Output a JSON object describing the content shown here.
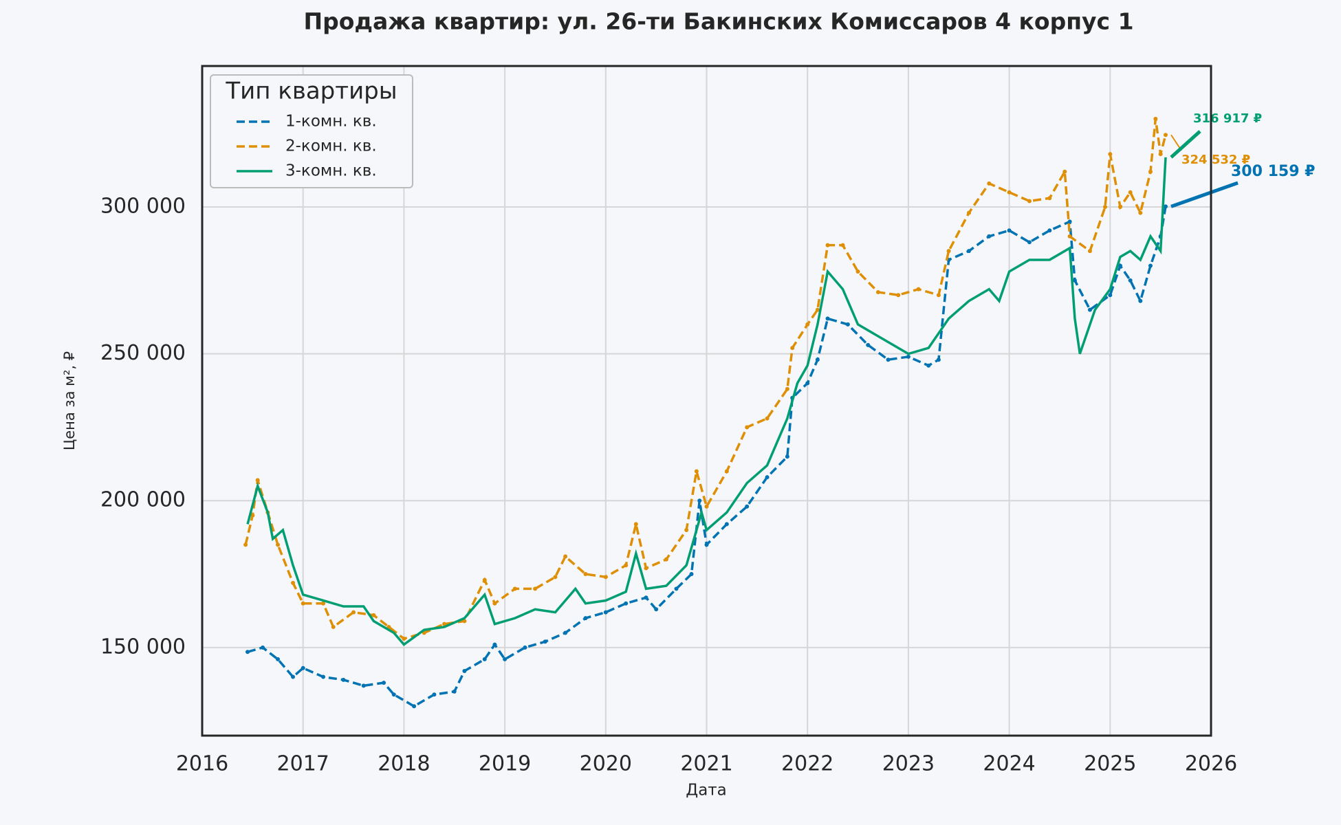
{
  "chart_data": {
    "type": "line",
    "title": "Продажа квартир: ул. 26-ти Бакинских Комиссаров 4 корпус 1",
    "x_label": "Дата",
    "y_label": "Цена за м², ₽",
    "legend_title": "Тип квартиры",
    "legend_position": "upper left",
    "grid": true,
    "xlim": [
      2016,
      2026
    ],
    "xticks": [
      2016,
      2017,
      2018,
      2019,
      2020,
      2021,
      2022,
      2023,
      2024,
      2025,
      2026
    ],
    "ylim": [
      120000,
      348000
    ],
    "yticks": [
      {
        "value": 150000,
        "label": "150 000"
      },
      {
        "value": 200000,
        "label": "200 000"
      },
      {
        "value": 250000,
        "label": "250 000"
      },
      {
        "value": 300000,
        "label": "300 000"
      }
    ],
    "series": [
      {
        "name": "1-комн. кв.",
        "color": "#0173b2",
        "dashed": true,
        "annotation": "300 159 ₽",
        "x": [
          2016.45,
          2016.6,
          2016.75,
          2016.9,
          2017.0,
          2017.2,
          2017.4,
          2017.6,
          2017.8,
          2017.9,
          2018.1,
          2018.3,
          2018.5,
          2018.6,
          2018.8,
          2018.9,
          2019.0,
          2019.2,
          2019.4,
          2019.6,
          2019.8,
          2020.0,
          2020.2,
          2020.4,
          2020.5,
          2020.7,
          2020.85,
          2020.93,
          2021.0,
          2021.2,
          2021.4,
          2021.6,
          2021.8,
          2021.85,
          2022.0,
          2022.1,
          2022.2,
          2022.4,
          2022.6,
          2022.8,
          2023.0,
          2023.2,
          2023.3,
          2023.4,
          2023.6,
          2023.8,
          2024.0,
          2024.2,
          2024.4,
          2024.6,
          2024.65,
          2024.8,
          2025.0,
          2025.1,
          2025.2,
          2025.3,
          2025.4,
          2025.5,
          2025.55
        ],
        "values": [
          148500,
          150000,
          146000,
          140000,
          143000,
          140000,
          139000,
          137000,
          138000,
          134000,
          130000,
          134000,
          135000,
          142000,
          146000,
          151000,
          146000,
          150000,
          152000,
          155000,
          160000,
          162000,
          165000,
          167000,
          163000,
          170000,
          175000,
          200000,
          185000,
          192000,
          198000,
          208000,
          215000,
          235000,
          240000,
          248000,
          262000,
          260000,
          253000,
          248000,
          249000,
          246000,
          248000,
          282000,
          285000,
          290000,
          292000,
          288000,
          292000,
          295000,
          275000,
          265000,
          270000,
          280000,
          275000,
          268000,
          280000,
          290000,
          300159
        ]
      },
      {
        "name": "2-комн. кв.",
        "color": "#de8f05",
        "dashed": true,
        "annotation": "324 532 ₽",
        "x": [
          2016.43,
          2016.5,
          2016.55,
          2016.65,
          2016.75,
          2016.9,
          2017.0,
          2017.2,
          2017.3,
          2017.5,
          2017.7,
          2017.85,
          2018.0,
          2018.2,
          2018.4,
          2018.6,
          2018.8,
          2018.9,
          2019.1,
          2019.3,
          2019.5,
          2019.6,
          2019.8,
          2020.0,
          2020.2,
          2020.3,
          2020.4,
          2020.6,
          2020.8,
          2020.9,
          2021.0,
          2021.2,
          2021.4,
          2021.6,
          2021.8,
          2021.85,
          2022.0,
          2022.1,
          2022.2,
          2022.35,
          2022.5,
          2022.7,
          2022.9,
          2023.1,
          2023.3,
          2023.4,
          2023.6,
          2023.8,
          2024.0,
          2024.2,
          2024.4,
          2024.55,
          2024.6,
          2024.8,
          2024.95,
          2025.0,
          2025.1,
          2025.2,
          2025.3,
          2025.4,
          2025.45,
          2025.5,
          2025.55
        ],
        "values": [
          185000,
          195000,
          207000,
          196000,
          185000,
          172000,
          165000,
          165000,
          157000,
          162000,
          161000,
          157000,
          153000,
          155000,
          158000,
          159000,
          173000,
          165000,
          170000,
          170000,
          174000,
          181000,
          175000,
          174000,
          178000,
          192000,
          177000,
          180000,
          190000,
          210000,
          198000,
          210000,
          225000,
          228000,
          238000,
          252000,
          260000,
          265000,
          287000,
          287000,
          278000,
          271000,
          270000,
          272000,
          270000,
          285000,
          298000,
          308000,
          305000,
          302000,
          303000,
          312000,
          290000,
          285000,
          300000,
          318000,
          300000,
          305000,
          298000,
          312000,
          330000,
          318000,
          324532
        ]
      },
      {
        "name": "3-комн. кв.",
        "color": "#029e73",
        "dashed": false,
        "annotation": "316 917 ₽",
        "x": [
          2016.45,
          2016.55,
          2016.65,
          2016.7,
          2016.8,
          2016.9,
          2017.0,
          2017.2,
          2017.4,
          2017.6,
          2017.7,
          2017.9,
          2018.0,
          2018.2,
          2018.4,
          2018.6,
          2018.8,
          2018.9,
          2019.1,
          2019.3,
          2019.5,
          2019.7,
          2019.8,
          2020.0,
          2020.2,
          2020.3,
          2020.4,
          2020.6,
          2020.8,
          2020.95,
          2021.0,
          2021.2,
          2021.4,
          2021.6,
          2021.8,
          2021.9,
          2022.0,
          2022.1,
          2022.2,
          2022.35,
          2022.5,
          2022.7,
          2022.9,
          2023.0,
          2023.2,
          2023.4,
          2023.6,
          2023.8,
          2023.9,
          2024.0,
          2024.2,
          2024.4,
          2024.6,
          2024.65,
          2024.7,
          2024.85,
          2025.0,
          2025.1,
          2025.2,
          2025.3,
          2025.4,
          2025.5,
          2025.55
        ],
        "values": [
          192000,
          205000,
          196000,
          187000,
          190000,
          178000,
          168000,
          166000,
          164000,
          164000,
          159000,
          155000,
          151000,
          156000,
          157000,
          160000,
          168000,
          158000,
          160000,
          163000,
          162000,
          170000,
          165000,
          166000,
          169000,
          182000,
          170000,
          171000,
          178000,
          196000,
          190000,
          196000,
          206000,
          212000,
          228000,
          240000,
          246000,
          260000,
          278000,
          272000,
          260000,
          256000,
          252000,
          250000,
          252000,
          262000,
          268000,
          272000,
          268000,
          278000,
          282000,
          282000,
          286000,
          262000,
          250000,
          265000,
          272000,
          283000,
          285000,
          282000,
          290000,
          285000,
          316917
        ]
      }
    ]
  }
}
